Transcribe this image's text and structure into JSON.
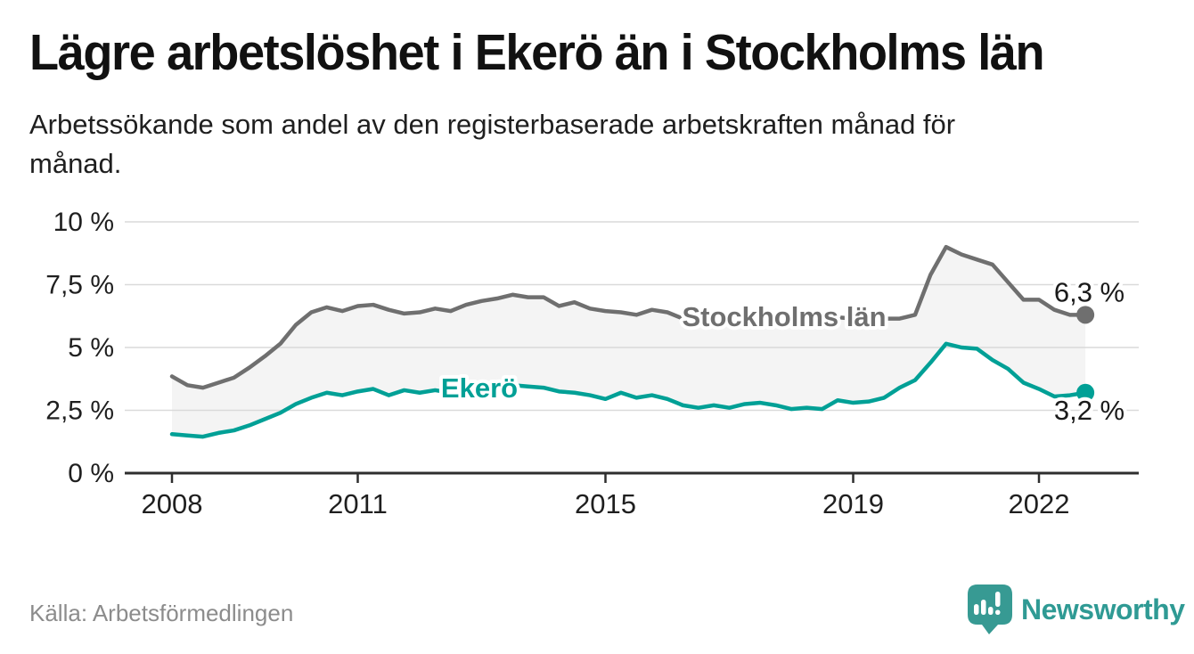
{
  "header": {
    "title": "Lägre arbetslöshet i Ekerö än i Stockholms län",
    "subtitle_line1": "Arbetssökande som andel av den registerbaserade arbetskraften månad för",
    "subtitle_line2": "månad."
  },
  "footer": {
    "source": "Källa: Arbetsförmedlingen",
    "logo_text": "Newsworthy"
  },
  "colors": {
    "stockholm_line": "#6f6f6f",
    "ekero_line": "#00a096",
    "between_fill": "#f4f4f4",
    "grid": "#dadada",
    "axis": "#2e2e2e",
    "tick_text": "#1f1f1f",
    "value_label_text": "#1a1a1a",
    "logo_teal": "#379a93"
  },
  "chart_data": {
    "type": "line",
    "title": "",
    "xlabel": "",
    "ylabel": "",
    "grid": true,
    "legend_position": "inline-labels",
    "ylim": [
      0,
      10
    ],
    "xlim": [
      2007.25,
      2023.6
    ],
    "between_fill": "#f4f4f4",
    "grid_color": "#dadada",
    "axis_color": "#2e2e2e",
    "tick_color": "#1f1f1f",
    "value_label_color": "#1a1a1a",
    "y_ticks": [
      {
        "value": 0,
        "label": "0 %"
      },
      {
        "value": 2.5,
        "label": "2,5 %"
      },
      {
        "value": 5,
        "label": "5 %"
      },
      {
        "value": 7.5,
        "label": "7,5 %"
      },
      {
        "value": 10,
        "label": "10 %"
      }
    ],
    "x_ticks": [
      {
        "value": 2008,
        "label": "2008"
      },
      {
        "value": 2011,
        "label": "2011"
      },
      {
        "value": 2015,
        "label": "2015"
      },
      {
        "value": 2019,
        "label": "2019"
      },
      {
        "value": 2022,
        "label": "2022"
      }
    ],
    "x": [
      2008,
      2008.25,
      2008.5,
      2008.75,
      2009,
      2009.25,
      2009.5,
      2009.75,
      2010,
      2010.25,
      2010.5,
      2010.75,
      2011,
      2011.25,
      2011.5,
      2011.75,
      2012,
      2012.25,
      2012.5,
      2012.75,
      2013,
      2013.25,
      2013.5,
      2013.75,
      2014,
      2014.25,
      2014.5,
      2014.75,
      2015,
      2015.25,
      2015.5,
      2015.75,
      2016,
      2016.25,
      2016.5,
      2016.75,
      2017,
      2017.25,
      2017.5,
      2017.75,
      2018,
      2018.25,
      2018.5,
      2018.75,
      2019,
      2019.25,
      2019.5,
      2019.75,
      2020,
      2020.25,
      2020.5,
      2020.75,
      2021,
      2021.25,
      2021.5,
      2021.75,
      2022,
      2022.25,
      2022.5,
      2022.75
    ],
    "series": [
      {
        "name": "Stockholms län",
        "color": "#6f6f6f",
        "end_label": "6,3 %",
        "values": [
          3.85,
          3.5,
          3.4,
          3.6,
          3.8,
          4.2,
          4.65,
          5.15,
          5.9,
          6.4,
          6.6,
          6.45,
          6.65,
          6.7,
          6.5,
          6.35,
          6.4,
          6.55,
          6.45,
          6.7,
          6.85,
          6.95,
          7.1,
          7.0,
          7.0,
          6.65,
          6.8,
          6.55,
          6.45,
          6.4,
          6.3,
          6.5,
          6.4,
          6.15,
          6.25,
          6.3,
          6.25,
          6.3,
          6.2,
          6.25,
          6.2,
          6.15,
          6.1,
          6.2,
          6.15,
          6.1,
          6.15,
          6.15,
          6.3,
          7.9,
          9.0,
          8.7,
          8.5,
          8.3,
          7.6,
          6.9,
          6.9,
          6.5,
          6.3,
          6.3
        ]
      },
      {
        "name": "Ekerö",
        "color": "#00a096",
        "end_label": "3,2 %",
        "values": [
          1.55,
          1.5,
          1.45,
          1.6,
          1.7,
          1.9,
          2.15,
          2.4,
          2.75,
          3.0,
          3.2,
          3.1,
          3.25,
          3.35,
          3.1,
          3.3,
          3.2,
          3.3,
          3.2,
          3.1,
          3.15,
          3.3,
          3.5,
          3.45,
          3.4,
          3.25,
          3.2,
          3.1,
          2.95,
          3.2,
          3.0,
          3.1,
          2.95,
          2.7,
          2.6,
          2.7,
          2.6,
          2.75,
          2.8,
          2.7,
          2.55,
          2.6,
          2.55,
          2.9,
          2.8,
          2.85,
          3.0,
          3.4,
          3.7,
          4.4,
          5.15,
          5.0,
          4.95,
          4.5,
          4.15,
          3.6,
          3.35,
          3.05,
          3.1,
          3.2
        ]
      }
    ]
  }
}
